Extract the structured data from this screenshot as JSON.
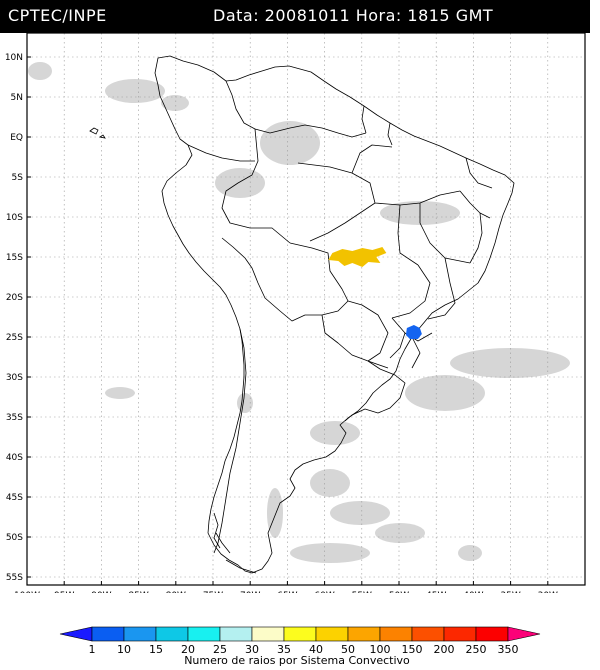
{
  "header": {
    "source": "CPTEC/INPE",
    "datetime": "Data: 20081011 Hora: 1815 GMT"
  },
  "map": {
    "lon_range": [
      -100,
      -25
    ],
    "lat_range": [
      -56,
      13
    ],
    "lat_ticks": [
      {
        "value": 10,
        "label": "10N"
      },
      {
        "value": 5,
        "label": "5N"
      },
      {
        "value": 0,
        "label": "EQ"
      },
      {
        "value": -5,
        "label": "5S"
      },
      {
        "value": -10,
        "label": "10S"
      },
      {
        "value": -15,
        "label": "15S"
      },
      {
        "value": -20,
        "label": "20S"
      },
      {
        "value": -25,
        "label": "25S"
      },
      {
        "value": -30,
        "label": "30S"
      },
      {
        "value": -35,
        "label": "35S"
      },
      {
        "value": -40,
        "label": "40S"
      },
      {
        "value": -45,
        "label": "45S"
      },
      {
        "value": -50,
        "label": "50S"
      },
      {
        "value": -55,
        "label": "55S"
      }
    ],
    "lon_ticks": [
      {
        "value": -100,
        "label": "100W"
      },
      {
        "value": -95,
        "label": "95W"
      },
      {
        "value": -90,
        "label": "90W"
      },
      {
        "value": -85,
        "label": "85W"
      },
      {
        "value": -80,
        "label": "80W"
      },
      {
        "value": -75,
        "label": "75W"
      },
      {
        "value": -70,
        "label": "70W"
      },
      {
        "value": -65,
        "label": "65W"
      },
      {
        "value": -60,
        "label": "60W"
      },
      {
        "value": -55,
        "label": "55W"
      },
      {
        "value": -50,
        "label": "50W"
      },
      {
        "value": -45,
        "label": "45W"
      },
      {
        "value": -40,
        "label": "40W"
      },
      {
        "value": -35,
        "label": "35W"
      },
      {
        "value": -30,
        "label": "30W"
      }
    ],
    "systems": [
      {
        "lon": -56,
        "lat": -15,
        "color": "#f2c200"
      },
      {
        "lon": -48,
        "lat": -24.5,
        "color": "#1464f0"
      }
    ]
  },
  "legend": {
    "labels": [
      "1",
      "10",
      "15",
      "20",
      "25",
      "30",
      "35",
      "40",
      "50",
      "100",
      "150",
      "200",
      "250",
      "350"
    ],
    "colors": [
      "#1a1aff",
      "#0a5ef2",
      "#1a96f0",
      "#0ec8e6",
      "#18f0f0",
      "#b4f0f0",
      "#fcfcc8",
      "#fcfc1e",
      "#fcd200",
      "#fca500",
      "#fc8200",
      "#fc5000",
      "#fc2800",
      "#fc0000",
      "#fc0078"
    ],
    "title": "Numero de raios por Sistema Convectivo"
  }
}
